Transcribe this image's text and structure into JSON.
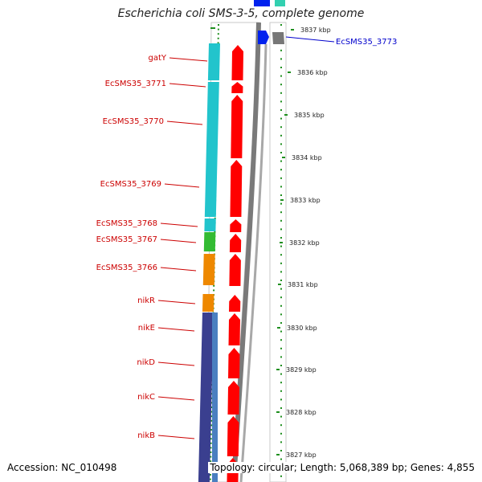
{
  "title": "Escherichia coli SMS-3-5, complete genome",
  "footer": {
    "accession": "Accession: NC_010498",
    "summary": "Topology: circular; Length: 5,068,389 bp; Genes: 4,855"
  },
  "colors": {
    "label_left": "#cc0000",
    "label_right": "#0000cc",
    "cds_forward": "#ff0000",
    "tick_dots": "#1f8f1f",
    "cyan": "#22c4cc",
    "orange": "#ee8800",
    "green": "#33bb33",
    "navy": "#3a3f8f",
    "steel": "#4a7fc0",
    "blue": "#0022ee",
    "gray": "#777777"
  },
  "scale": [
    {
      "label": "3837 kbp"
    },
    {
      "label": "3836 kbp"
    },
    {
      "label": "3835 kbp"
    },
    {
      "label": "3834 kbp"
    },
    {
      "label": "3833 kbp"
    },
    {
      "label": "3832 kbp"
    },
    {
      "label": "3831 kbp"
    },
    {
      "label": "3830 kbp"
    },
    {
      "label": "3829 kbp"
    },
    {
      "label": "3828 kbp"
    },
    {
      "label": "3827 kbp"
    }
  ],
  "left_labels": [
    {
      "name": "gatY"
    },
    {
      "name": "EcSMS35_3771"
    },
    {
      "name": "EcSMS35_3770"
    },
    {
      "name": "EcSMS35_3769"
    },
    {
      "name": "EcSMS35_3768"
    },
    {
      "name": "EcSMS35_3767"
    },
    {
      "name": "EcSMS35_3766"
    },
    {
      "name": "nikR"
    },
    {
      "name": "nikE"
    },
    {
      "name": "nikD"
    },
    {
      "name": "nikC"
    },
    {
      "name": "nikB"
    }
  ],
  "right_labels": [
    {
      "name": "EcSMS35_3773"
    }
  ]
}
